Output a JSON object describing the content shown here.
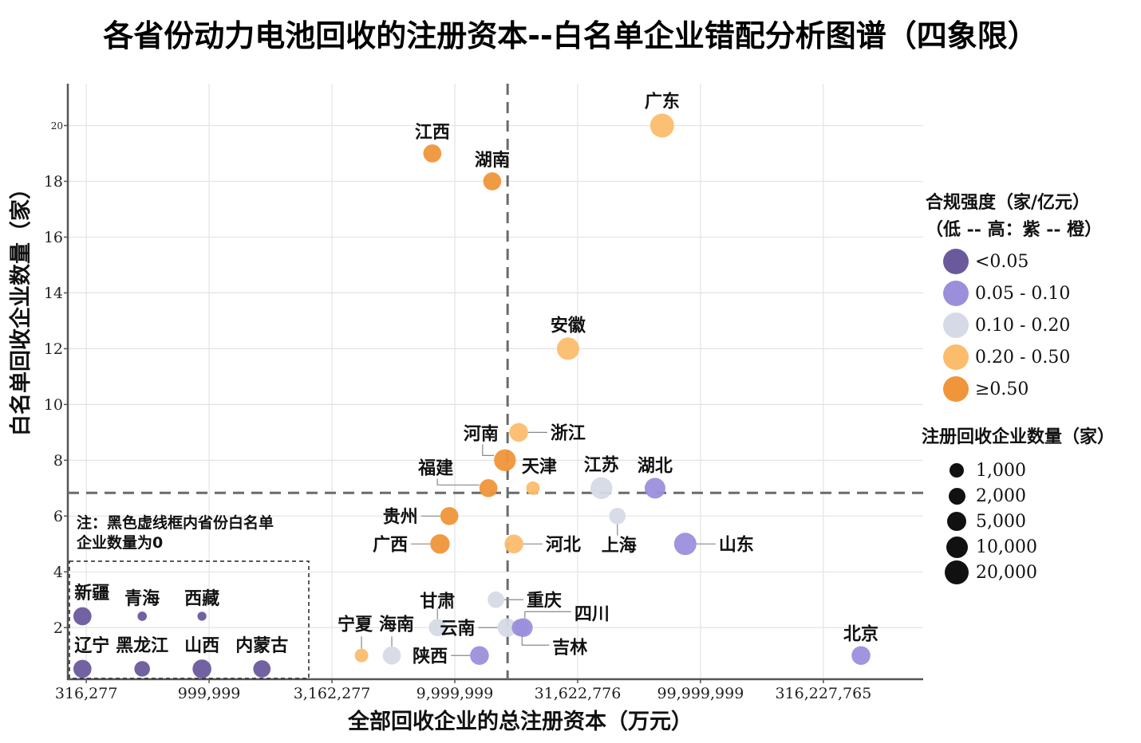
{
  "chart_data": {
    "type": "scatter",
    "title": "各省份动力电池回收的注册资本--白名单企业错配分析图谱（四象限）",
    "xlabel": "全部回收企业的总注册资本（万元）",
    "ylabel": "白名单回收企业数量（家）",
    "xscale": "log10",
    "xlim": [
      266000,
      806000000
    ],
    "ylim": [
      0.15,
      21.5
    ],
    "x_ticks": [
      {
        "value": 316277,
        "label": "316,277"
      },
      {
        "value": 999999,
        "label": "999,999"
      },
      {
        "value": 3162277,
        "label": "3,162,277"
      },
      {
        "value": 9999999,
        "label": "9,999,999"
      },
      {
        "value": 31622776,
        "label": "31,622,776"
      },
      {
        "value": 99999999,
        "label": "99,999,999"
      },
      {
        "value": 316227765,
        "label": "316,227,765"
      }
    ],
    "y_ticks": [
      {
        "value": 2,
        "label": "2"
      },
      {
        "value": 4,
        "label": "4"
      },
      {
        "value": 6,
        "label": "6"
      },
      {
        "value": 8,
        "label": "8"
      },
      {
        "value": 10,
        "label": "10"
      },
      {
        "value": 12,
        "label": "12"
      },
      {
        "value": 14,
        "label": "14"
      },
      {
        "value": 16,
        "label": "16"
      },
      {
        "value": 18,
        "label": "18"
      },
      {
        "value": 20,
        "label": "20"
      }
    ],
    "grid": true,
    "reference_lines": {
      "x": 16400000,
      "y": 6.83,
      "style": "dashed"
    },
    "color_legend": {
      "title_line1": "合规强度（家/亿元）",
      "title_line2": "（低 -- 高：紫 -- 橙）",
      "position": "right",
      "categories": [
        {
          "key": "c1",
          "label": "<0.05",
          "color": "#6a5a9c"
        },
        {
          "key": "c2",
          "label": "0.05 - 0.10",
          "color": "#9b8fdc"
        },
        {
          "key": "c3",
          "label": "0.10 - 0.20",
          "color": "#d6dae6"
        },
        {
          "key": "c4",
          "label": "0.20 - 0.50",
          "color": "#fbbd6c"
        },
        {
          "key": "c5",
          "label": "≥0.50",
          "color": "#f0953a"
        }
      ]
    },
    "size_legend": {
      "title": "注册回收企业数量（家）",
      "position": "right",
      "entries": [
        {
          "value": 1000,
          "label": "1,000"
        },
        {
          "value": 2000,
          "label": "2,000"
        },
        {
          "value": 5000,
          "label": "5,000"
        },
        {
          "value": 10000,
          "label": "10,000"
        },
        {
          "value": 20000,
          "label": "20,000"
        }
      ]
    },
    "points": [
      {
        "name": "广东",
        "x": 69800000,
        "y": 20,
        "cat": "c4",
        "size": 18000,
        "label_pos": "top"
      },
      {
        "name": "江西",
        "x": 8100000,
        "y": 19,
        "cat": "c5",
        "size": 8000,
        "label_pos": "top"
      },
      {
        "name": "湖南",
        "x": 14200000,
        "y": 18,
        "cat": "c5",
        "size": 8000,
        "label_pos": "top"
      },
      {
        "name": "安徽",
        "x": 28900000,
        "y": 12,
        "cat": "c4",
        "size": 15000,
        "label_pos": "top"
      },
      {
        "name": "浙江",
        "x": 18200000,
        "y": 9,
        "cat": "c4",
        "size": 9000,
        "label_pos": "right"
      },
      {
        "name": "河南",
        "x": 16000000,
        "y": 8,
        "cat": "c5",
        "size": 14000,
        "label_pos": "top-left"
      },
      {
        "name": "福建",
        "x": 13700000,
        "y": 7,
        "cat": "c5",
        "size": 8000,
        "label_pos": "top-left"
      },
      {
        "name": "天津",
        "x": 20800000,
        "y": 7,
        "cat": "c4",
        "size": 3000,
        "label_pos": "top"
      },
      {
        "name": "江苏",
        "x": 39500000,
        "y": 7,
        "cat": "c3",
        "size": 14000,
        "label_pos": "top"
      },
      {
        "name": "湖北",
        "x": 65300000,
        "y": 7,
        "cat": "c2",
        "size": 12000,
        "label_pos": "top"
      },
      {
        "name": "贵州",
        "x": 9500000,
        "y": 6,
        "cat": "c5",
        "size": 8000,
        "label_pos": "left"
      },
      {
        "name": "上海",
        "x": 45900000,
        "y": 6,
        "cat": "c3",
        "size": 6000,
        "label_pos": "bottom"
      },
      {
        "name": "广西",
        "x": 8700000,
        "y": 5,
        "cat": "c5",
        "size": 10000,
        "label_pos": "left"
      },
      {
        "name": "河北",
        "x": 17400000,
        "y": 5,
        "cat": "c4",
        "size": 9000,
        "label_pos": "right"
      },
      {
        "name": "山东",
        "x": 86700000,
        "y": 5,
        "cat": "c2",
        "size": 15000,
        "label_pos": "right"
      },
      {
        "name": "重庆",
        "x": 14700000,
        "y": 3,
        "cat": "c3",
        "size": 6000,
        "label_pos": "right"
      },
      {
        "name": "甘肃",
        "x": 8500000,
        "y": 2,
        "cat": "c3",
        "size": 7000,
        "label_pos": "top"
      },
      {
        "name": "云南",
        "x": 16300000,
        "y": 2,
        "cat": "c3",
        "size": 9000,
        "label_pos": "left"
      },
      {
        "name": "四川",
        "x": 19000000,
        "y": 2,
        "cat": "c2",
        "size": 9000,
        "label_pos": "top-right"
      },
      {
        "name": "吉林",
        "x": 18500000,
        "y": 2,
        "cat": "c2",
        "size": 7000,
        "label_pos": "bottom-right"
      },
      {
        "name": "宁夏",
        "x": 4170000,
        "y": 1,
        "cat": "c4",
        "size": 3000,
        "label_pos": "top"
      },
      {
        "name": "海南",
        "x": 5540000,
        "y": 1,
        "cat": "c3",
        "size": 8000,
        "label_pos": "top"
      },
      {
        "name": "陕西",
        "x": 12600000,
        "y": 1,
        "cat": "c2",
        "size": 9000,
        "label_pos": "left"
      },
      {
        "name": "北京",
        "x": 450000000,
        "y": 1,
        "cat": "c2",
        "size": 9000,
        "label_pos": "top"
      }
    ],
    "zero_whitelist_box": {
      "note_line1": "注：黑色虚线框内省份白名单",
      "note_line2": "企业数量为0",
      "points": [
        {
          "name": "新疆",
          "x": 305000,
          "y": 0,
          "cat": "c1",
          "size": 8000,
          "row": "upper"
        },
        {
          "name": "青海",
          "x": 534000,
          "y": 0,
          "cat": "c1",
          "size": 500,
          "row": "upper"
        },
        {
          "name": "西藏",
          "x": 935000,
          "y": 0,
          "cat": "c1",
          "size": 400,
          "row": "upper"
        },
        {
          "name": "辽宁",
          "x": 305000,
          "y": 0,
          "cat": "c1",
          "size": 8000,
          "row": "lower"
        },
        {
          "name": "黑龙江",
          "x": 534000,
          "y": 0,
          "cat": "c1",
          "size": 5000,
          "row": "lower"
        },
        {
          "name": "山西",
          "x": 935000,
          "y": 0,
          "cat": "c1",
          "size": 9000,
          "row": "lower"
        },
        {
          "name": "内蒙古",
          "x": 1640000,
          "y": 0,
          "cat": "c1",
          "size": 7000,
          "row": "lower"
        }
      ]
    }
  }
}
